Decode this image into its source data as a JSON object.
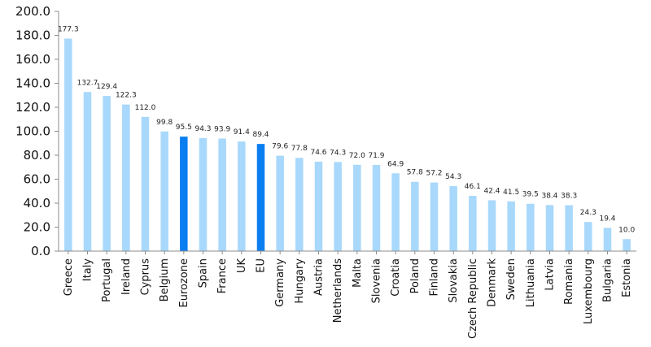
{
  "chart_data": {
    "type": "bar",
    "title": "",
    "xlabel": "",
    "ylabel": "",
    "ylim": [
      0,
      200
    ],
    "yticks": [
      "0.0",
      "20.0",
      "40.0",
      "60.0",
      "80.0",
      "100.0",
      "120.0",
      "140.0",
      "160.0",
      "180.0",
      "200.0"
    ],
    "grid": false,
    "legend": "none",
    "colors": {
      "default": "#a8d8fb",
      "highlight": "#0a7ef0"
    },
    "categories": [
      "Greece",
      "Italy",
      "Portugal",
      "Ireland",
      "Cyprus",
      "Belgium",
      "Eurozone",
      "Spain",
      "France",
      "UK",
      "EU",
      "Germany",
      "Hungary",
      "Austria",
      "Netherlands",
      "Malta",
      "Slovenia",
      "Croatia",
      "Poland",
      "Finland",
      "Slovakia",
      "Czech Republic",
      "Denmark",
      "Sweden",
      "Lithuania",
      "Latvia",
      "Romania",
      "Luxembourg",
      "Bulgaria",
      "Estonia"
    ],
    "values": [
      177.3,
      132.7,
      129.4,
      122.3,
      112.0,
      99.8,
      95.5,
      94.3,
      93.9,
      91.4,
      89.4,
      79.6,
      77.8,
      74.6,
      74.3,
      72.0,
      71.9,
      64.9,
      57.8,
      57.2,
      54.3,
      46.1,
      42.4,
      41.5,
      39.5,
      38.4,
      38.3,
      24.3,
      19.4,
      10.0
    ],
    "value_labels": [
      "177.3",
      "132.7",
      "129.4",
      "122.3",
      "112.0",
      "99.8",
      "95.5",
      "94.3",
      "93.9",
      "91.4",
      "89.4",
      "79.6",
      "77.8",
      "74.6",
      "74.3",
      "72.0",
      "71.9",
      "64.9",
      "57.8",
      "57.2",
      "54.3",
      "46.1",
      "42.4",
      "41.5",
      "39.5",
      "38.4",
      "38.3",
      "24.3",
      "19.4",
      "10.0"
    ],
    "highlighted": [
      "Eurozone",
      "EU"
    ]
  }
}
